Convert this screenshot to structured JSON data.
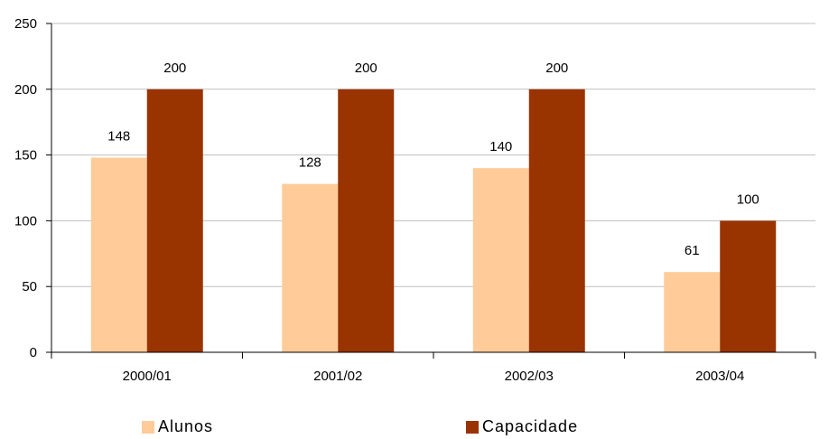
{
  "chart_data": {
    "type": "bar",
    "categories": [
      "2000/01",
      "2001/02",
      "2002/03",
      "2003/04"
    ],
    "series": [
      {
        "name": "Alunos",
        "values": [
          148,
          128,
          140,
          61
        ],
        "color": "#FFCC99"
      },
      {
        "name": "Capacidade",
        "values": [
          200,
          200,
          200,
          100
        ],
        "color": "#993300"
      }
    ],
    "ylim": [
      0,
      250
    ],
    "yticks": [
      "0",
      "50",
      "100",
      "150",
      "200",
      "250"
    ],
    "grid": true,
    "legend": "bottom",
    "title": "",
    "xlabel": "",
    "ylabel": ""
  }
}
